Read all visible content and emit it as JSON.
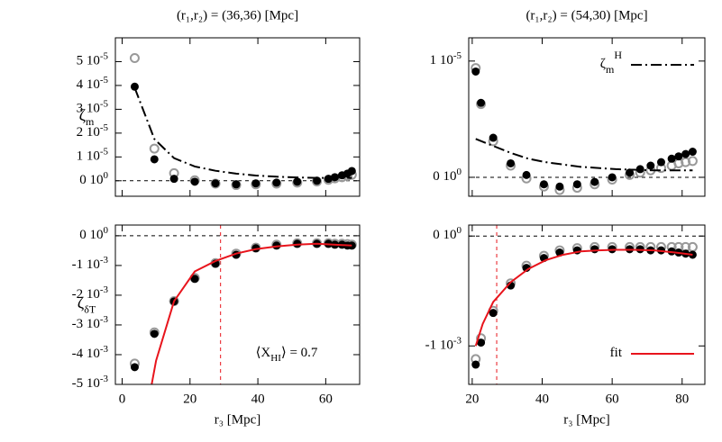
{
  "chart_data": [
    {
      "type": "scatter",
      "title": "(r₁,r₂) = (36,36) [Mpc]",
      "ylabel": "ζ",
      "ylabel_sub": "m",
      "xlim": [
        -2,
        70
      ],
      "xticks": [
        0,
        20,
        40,
        60
      ],
      "ylim": [
        -6.5e-06,
        6e-05
      ],
      "yticks": [
        {
          "value": 0,
          "label": "0 10",
          "exp": "0"
        },
        {
          "value": 1e-05,
          "label": "1 10",
          "exp": "-5"
        },
        {
          "value": 2e-05,
          "label": "2 10",
          "exp": "-5"
        },
        {
          "value": 3e-05,
          "label": "3 10",
          "exp": "-5"
        },
        {
          "value": 4e-05,
          "label": "4 10",
          "exp": "-5"
        },
        {
          "value": 5e-05,
          "label": "5 10",
          "exp": "-5"
        }
      ],
      "hline": 0,
      "series": [
        {
          "marker": "open",
          "color": "#999999",
          "x": [
            3.7,
            9.5,
            15.3,
            21.4,
            27.5,
            33.6,
            39.4,
            45.5,
            51.6,
            57.4,
            60.8,
            62.7,
            64.8,
            66.4,
            67.7
          ],
          "values": [
            5.15e-05,
            1.35e-05,
            3.2e-06,
            2e-07,
            -1.2e-06,
            -1.8e-06,
            -1.5e-06,
            -1.2e-06,
            -8e-07,
            -3e-07,
            4e-07,
            1e-06,
            1.5e-06,
            2e-06,
            2.5e-06
          ]
        },
        {
          "marker": "filled",
          "color": "#000000",
          "x": [
            3.7,
            9.5,
            15.3,
            21.4,
            27.5,
            33.6,
            39.4,
            45.5,
            51.6,
            57.4,
            60.8,
            62.7,
            64.8,
            66.4,
            67.7
          ],
          "values": [
            3.95e-05,
            9e-06,
            8e-07,
            -4e-07,
            -1.1e-06,
            -1.5e-06,
            -1.1e-06,
            -8e-07,
            -4e-07,
            0,
            8e-07,
            1.5e-06,
            2.3e-06,
            3e-06,
            4.1e-06
          ]
        },
        {
          "marker": "line",
          "style": "dashdot",
          "color": "#000000",
          "x": [
            3.7,
            9.5,
            15.3,
            21.4,
            27.5,
            33.6,
            39.4,
            45.5,
            51.6,
            57.4,
            67.7
          ],
          "values": [
            3.9e-05,
            1.75e-05,
            9.5e-06,
            6e-06,
            4.2e-06,
            3e-06,
            2.2e-06,
            1.7e-06,
            1.4e-06,
            1.2e-06,
            1.2e-06
          ]
        }
      ]
    },
    {
      "type": "scatter",
      "title": "(r₁,r₂) = (54,30) [Mpc]",
      "xlim": [
        19,
        86.5
      ],
      "xticks": [
        20,
        40,
        60,
        80
      ],
      "ylim": [
        -1.63e-06,
        1.2e-05
      ],
      "yticks": [
        {
          "value": 0,
          "label": "0 10",
          "exp": "0"
        },
        {
          "value": 1e-05,
          "label": "1 10",
          "exp": "-5"
        }
      ],
      "hline": 0,
      "legend": "upper right",
      "series": [
        {
          "marker": "open",
          "color": "#999999",
          "x": [
            21,
            22.5,
            26,
            31,
            35.5,
            40.5,
            45,
            50,
            55,
            60,
            65,
            68,
            71,
            74,
            77,
            79,
            81,
            83
          ],
          "values": [
            9.4e-06,
            6.3e-06,
            3.1e-06,
            1e-06,
            -1e-07,
            -8e-07,
            -1.1e-06,
            -9e-07,
            -6e-07,
            -2e-07,
            2e-07,
            4e-07,
            6e-07,
            8e-07,
            1e-06,
            1.2e-06,
            1.3e-06,
            1.4e-06
          ]
        },
        {
          "marker": "filled",
          "color": "#000000",
          "x": [
            21,
            22.5,
            26,
            31,
            35.5,
            40.5,
            45,
            50,
            55,
            60,
            65,
            68,
            71,
            74,
            77,
            79,
            81,
            83
          ],
          "values": [
            9.1e-06,
            6.4e-06,
            3.4e-06,
            1.2e-06,
            2e-07,
            -6e-07,
            -8e-07,
            -6e-07,
            -4e-07,
            0,
            4e-07,
            7e-07,
            1e-06,
            1.3e-06,
            1.6e-06,
            1.8e-06,
            2e-06,
            2.2e-06
          ]
        },
        {
          "marker": "line",
          "style": "dashdot",
          "color": "#000000",
          "name": "ζ",
          "name_sub": "m",
          "name_sup": "H",
          "x": [
            21,
            26,
            31,
            36,
            41,
            46,
            51,
            56,
            61,
            66,
            72,
            83
          ],
          "values": [
            3.3e-06,
            2.7e-06,
            2.1e-06,
            1.6e-06,
            1.3e-06,
            1.1e-06,
            9e-07,
            8e-07,
            7e-07,
            6.5e-07,
            6e-07,
            6e-07
          ]
        }
      ]
    },
    {
      "type": "scatter",
      "ylabel": "ζ",
      "ylabel_sub": "δT",
      "xlabel": "r₃ [Mpc]",
      "xlim": [
        -2,
        70
      ],
      "xticks": [
        0,
        20,
        40,
        60
      ],
      "ylim": [
        -0.005,
        0.00036
      ],
      "yticks": [
        {
          "value": -0.005,
          "label": "-5 10",
          "exp": "-3"
        },
        {
          "value": -0.004,
          "label": "-4 10",
          "exp": "-3"
        },
        {
          "value": -0.003,
          "label": "-3 10",
          "exp": "-3"
        },
        {
          "value": -0.002,
          "label": "-2 10",
          "exp": "-3"
        },
        {
          "value": -0.001,
          "label": "-1 10",
          "exp": "-3"
        },
        {
          "value": 0,
          "label": "0 10",
          "exp": "0"
        }
      ],
      "hline": 0,
      "vline": 29,
      "annotation": "⟨X",
      "annotation_sub": "HI",
      "annotation_after": "⟩ = 0.7",
      "series": [
        {
          "marker": "open",
          "color": "#999999",
          "x": [
            3.7,
            9.5,
            15.3,
            21.4,
            27.5,
            33.6,
            39.4,
            45.5,
            51.6,
            57.4,
            60.8,
            62.7,
            64.8,
            66.4,
            67.7
          ],
          "values": [
            -0.0043,
            -0.00325,
            -0.0022,
            -0.00142,
            -0.00092,
            -0.0006,
            -0.0004,
            -0.0003,
            -0.00025,
            -0.00025,
            -0.00025,
            -0.00027,
            -0.00027,
            -0.00028,
            -0.0003
          ]
        },
        {
          "marker": "filled",
          "color": "#000000",
          "x": [
            3.7,
            9.5,
            15.3,
            21.4,
            27.5,
            33.6,
            39.4,
            45.5,
            51.6,
            57.4,
            60.8,
            62.7,
            64.8,
            66.4,
            67.7
          ],
          "values": [
            -0.00442,
            -0.0033,
            -0.00221,
            -0.00145,
            -0.00094,
            -0.00064,
            -0.00042,
            -0.00033,
            -0.00027,
            -0.00027,
            -0.00027,
            -0.0003,
            -0.0003,
            -0.00033,
            -0.00033
          ]
        },
        {
          "marker": "line",
          "style": "solid",
          "color": "#e8141c",
          "x": [
            8.7,
            10,
            15.3,
            21.4,
            27.5,
            33.6,
            39.4,
            45.5,
            51.6,
            57.4,
            67.7
          ],
          "values": [
            -0.005,
            -0.0042,
            -0.0022,
            -0.0012,
            -0.00085,
            -0.0006,
            -0.00045,
            -0.00036,
            -0.0003,
            -0.00027,
            -0.00033
          ]
        }
      ]
    },
    {
      "type": "scatter",
      "xlabel": "r₃ [Mpc]",
      "xlim": [
        19,
        86.5
      ],
      "xticks": [
        20,
        40,
        60,
        80
      ],
      "ylim": [
        -0.00135,
        0.0001
      ],
      "yticks": [
        {
          "value": -0.001,
          "label": "-1 10",
          "exp": "-3"
        },
        {
          "value": 0,
          "label": "0 10",
          "exp": "0"
        }
      ],
      "hline": 0,
      "vline": 27,
      "legend": "lower right",
      "series": [
        {
          "marker": "open",
          "color": "#999999",
          "x": [
            21,
            22.5,
            26,
            31,
            35.5,
            40.5,
            45,
            50,
            55,
            60,
            65,
            68,
            71,
            74,
            77,
            79,
            81,
            83
          ],
          "values": [
            -0.00112,
            -0.00093,
            -0.00068,
            -0.00043,
            -0.00027,
            -0.00018,
            -0.00013,
            -0.00011,
            -0.0001,
            -0.0001,
            -0.0001,
            -0.0001,
            -0.0001,
            -0.0001,
            -0.0001,
            -0.0001,
            -0.0001,
            -0.0001
          ]
        },
        {
          "marker": "filled",
          "color": "#000000",
          "x": [
            21,
            22.5,
            26,
            31,
            35.5,
            40.5,
            45,
            50,
            55,
            60,
            65,
            68,
            71,
            74,
            77,
            79,
            81,
            83
          ],
          "values": [
            -0.00117,
            -0.00097,
            -0.0007,
            -0.00045,
            -0.00029,
            -0.0002,
            -0.00015,
            -0.00013,
            -0.00012,
            -0.00012,
            -0.00012,
            -0.00012,
            -0.00013,
            -0.00013,
            -0.00014,
            -0.00015,
            -0.00016,
            -0.00017
          ]
        },
        {
          "marker": "line",
          "style": "solid",
          "color": "#e8141c",
          "name": "fit",
          "x": [
            21,
            23,
            26,
            31,
            36,
            41,
            46,
            51,
            56,
            61,
            66,
            72,
            78,
            83
          ],
          "values": [
            -0.001,
            -0.0008,
            -0.0006,
            -0.00042,
            -0.0003,
            -0.00022,
            -0.00017,
            -0.00014,
            -0.00013,
            -0.000125,
            -0.000125,
            -0.00013,
            -0.00015,
            -0.00017
          ]
        }
      ]
    }
  ]
}
